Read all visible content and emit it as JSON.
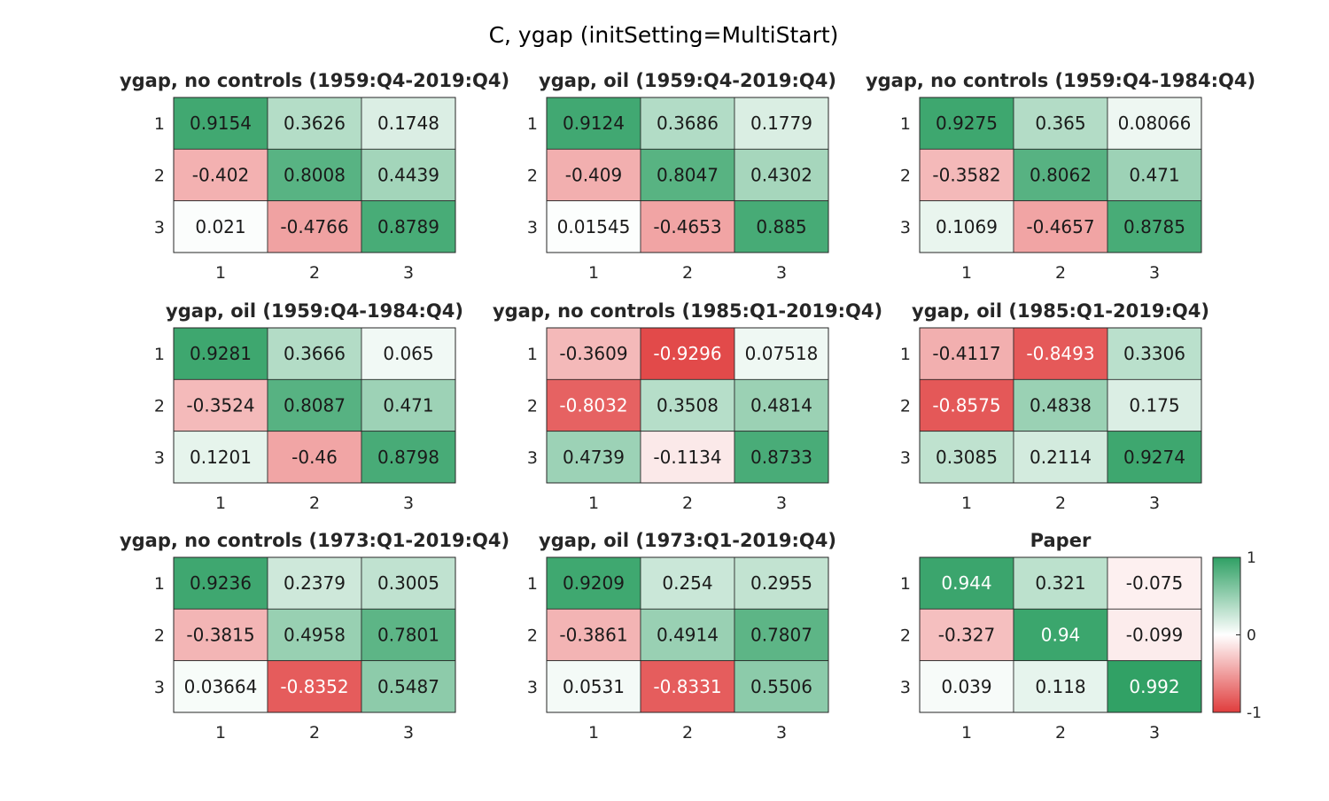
{
  "figure": {
    "title": "C, ygap (initSetting=MultiStart)"
  },
  "colorbar": {
    "range": [
      -1,
      1
    ],
    "tick_labels": [
      "1",
      "0",
      "-1"
    ],
    "colors": {
      "negative": "#e03c3c",
      "zero": "#ffffff",
      "positive": "#2fa064"
    }
  },
  "chart_data": [
    {
      "type": "heatmap",
      "title": "ygap, no controls (1959:Q4-2019:Q4)",
      "x_tick_labels": [
        "1",
        "2",
        "3"
      ],
      "y_tick_labels": [
        "1",
        "2",
        "3"
      ],
      "values": [
        [
          0.9154,
          0.3626,
          0.1748
        ],
        [
          -0.402,
          0.8008,
          0.4439
        ],
        [
          0.021,
          -0.4766,
          0.8789
        ]
      ],
      "labels": [
        [
          "0.9154",
          "0.3626",
          "0.1748"
        ],
        [
          "-0.402",
          "0.8008",
          "0.4439"
        ],
        [
          "0.021",
          "-0.4766",
          "0.8789"
        ]
      ],
      "clim": [
        -1,
        1
      ]
    },
    {
      "type": "heatmap",
      "title": "ygap, oil (1959:Q4-2019:Q4)",
      "x_tick_labels": [
        "1",
        "2",
        "3"
      ],
      "y_tick_labels": [
        "1",
        "2",
        "3"
      ],
      "values": [
        [
          0.9124,
          0.3686,
          0.1779
        ],
        [
          -0.409,
          0.8047,
          0.4302
        ],
        [
          0.01545,
          -0.4653,
          0.885
        ]
      ],
      "labels": [
        [
          "0.9124",
          "0.3686",
          "0.1779"
        ],
        [
          "-0.409",
          "0.8047",
          "0.4302"
        ],
        [
          "0.01545",
          "-0.4653",
          "0.885"
        ]
      ],
      "clim": [
        -1,
        1
      ]
    },
    {
      "type": "heatmap",
      "title": "ygap, no controls (1959:Q4-1984:Q4)",
      "x_tick_labels": [
        "1",
        "2",
        "3"
      ],
      "y_tick_labels": [
        "1",
        "2",
        "3"
      ],
      "values": [
        [
          0.9275,
          0.365,
          0.08066
        ],
        [
          -0.3582,
          0.8062,
          0.471
        ],
        [
          0.1069,
          -0.4657,
          0.8785
        ]
      ],
      "labels": [
        [
          "0.9275",
          "0.365",
          "0.08066"
        ],
        [
          "-0.3582",
          "0.8062",
          "0.471"
        ],
        [
          "0.1069",
          "-0.4657",
          "0.8785"
        ]
      ],
      "clim": [
        -1,
        1
      ]
    },
    {
      "type": "heatmap",
      "title": "ygap, oil (1959:Q4-1984:Q4)",
      "x_tick_labels": [
        "1",
        "2",
        "3"
      ],
      "y_tick_labels": [
        "1",
        "2",
        "3"
      ],
      "values": [
        [
          0.9281,
          0.3666,
          0.065
        ],
        [
          -0.3524,
          0.8087,
          0.471
        ],
        [
          0.1201,
          -0.46,
          0.8798
        ]
      ],
      "labels": [
        [
          "0.9281",
          "0.3666",
          "0.065"
        ],
        [
          "-0.3524",
          "0.8087",
          "0.471"
        ],
        [
          "0.1201",
          "-0.46",
          "0.8798"
        ]
      ],
      "clim": [
        -1,
        1
      ]
    },
    {
      "type": "heatmap",
      "title": "ygap, no controls (1985:Q1-2019:Q4)",
      "x_tick_labels": [
        "1",
        "2",
        "3"
      ],
      "y_tick_labels": [
        "1",
        "2",
        "3"
      ],
      "values": [
        [
          -0.3609,
          -0.9296,
          0.07518
        ],
        [
          -0.8032,
          0.3508,
          0.4814
        ],
        [
          0.4739,
          -0.1134,
          0.8733
        ]
      ],
      "labels": [
        [
          "-0.3609",
          "-0.9296",
          "0.07518"
        ],
        [
          "-0.8032",
          "0.3508",
          "0.4814"
        ],
        [
          "0.4739",
          "-0.1134",
          "0.8733"
        ]
      ],
      "clim": [
        -1,
        1
      ]
    },
    {
      "type": "heatmap",
      "title": "ygap, oil (1985:Q1-2019:Q4)",
      "x_tick_labels": [
        "1",
        "2",
        "3"
      ],
      "y_tick_labels": [
        "1",
        "2",
        "3"
      ],
      "values": [
        [
          -0.4117,
          -0.8493,
          0.3306
        ],
        [
          -0.8575,
          0.4838,
          0.175
        ],
        [
          0.3085,
          0.2114,
          0.9274
        ]
      ],
      "labels": [
        [
          "-0.4117",
          "-0.8493",
          "0.3306"
        ],
        [
          "-0.8575",
          "0.4838",
          "0.175"
        ],
        [
          "0.3085",
          "0.2114",
          "0.9274"
        ]
      ],
      "clim": [
        -1,
        1
      ]
    },
    {
      "type": "heatmap",
      "title": "ygap, no controls (1973:Q1-2019:Q4)",
      "x_tick_labels": [
        "1",
        "2",
        "3"
      ],
      "y_tick_labels": [
        "1",
        "2",
        "3"
      ],
      "values": [
        [
          0.9236,
          0.2379,
          0.3005
        ],
        [
          -0.3815,
          0.4958,
          0.7801
        ],
        [
          0.03664,
          -0.8352,
          0.5487
        ]
      ],
      "labels": [
        [
          "0.9236",
          "0.2379",
          "0.3005"
        ],
        [
          "-0.3815",
          "0.4958",
          "0.7801"
        ],
        [
          "0.03664",
          "-0.8352",
          "0.5487"
        ]
      ],
      "clim": [
        -1,
        1
      ]
    },
    {
      "type": "heatmap",
      "title": "ygap, oil (1973:Q1-2019:Q4)",
      "x_tick_labels": [
        "1",
        "2",
        "3"
      ],
      "y_tick_labels": [
        "1",
        "2",
        "3"
      ],
      "values": [
        [
          0.9209,
          0.254,
          0.2955
        ],
        [
          -0.3861,
          0.4914,
          0.7807
        ],
        [
          0.0531,
          -0.8331,
          0.5506
        ]
      ],
      "labels": [
        [
          "0.9209",
          "0.254",
          "0.2955"
        ],
        [
          "-0.3861",
          "0.4914",
          "0.7807"
        ],
        [
          "0.0531",
          "-0.8331",
          "0.5506"
        ]
      ],
      "clim": [
        -1,
        1
      ]
    },
    {
      "type": "heatmap",
      "title": "Paper",
      "x_tick_labels": [
        "1",
        "2",
        "3"
      ],
      "y_tick_labels": [
        "1",
        "2",
        "3"
      ],
      "values": [
        [
          0.944,
          0.321,
          -0.075
        ],
        [
          -0.327,
          0.94,
          -0.099
        ],
        [
          0.039,
          0.118,
          0.992
        ]
      ],
      "labels": [
        [
          "0.944",
          "0.321",
          "-0.075"
        ],
        [
          "-0.327",
          "0.94",
          "-0.099"
        ],
        [
          "0.039",
          "0.118",
          "0.992"
        ]
      ],
      "clim": [
        -1,
        1
      ]
    }
  ]
}
